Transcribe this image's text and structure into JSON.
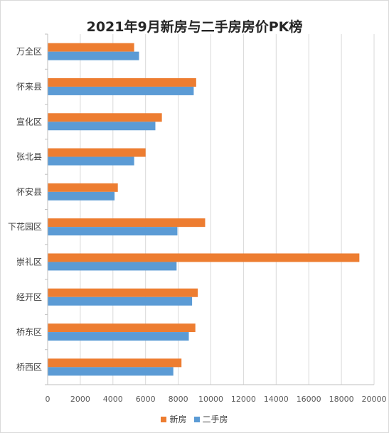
{
  "chart_data": {
    "type": "bar",
    "orientation": "horizontal",
    "title": "2021年9月新房与二手房房价PK榜",
    "categories": [
      "万全区",
      "怀来县",
      "宣化区",
      "张北县",
      "怀安县",
      "下花园区",
      "崇礼区",
      "经开区",
      "桥东区",
      "桥西区"
    ],
    "series": [
      {
        "name": "新房",
        "color": "#ED7D31",
        "values": [
          5300,
          9100,
          7000,
          6000,
          4300,
          9650,
          19100,
          9200,
          9050,
          8200
        ]
      },
      {
        "name": "二手房",
        "color": "#5B9BD5",
        "values": [
          5600,
          8950,
          6600,
          5300,
          4100,
          7950,
          7900,
          8850,
          8650,
          7700
        ]
      }
    ],
    "xlim": [
      0,
      20000
    ],
    "xticks": [
      0,
      2000,
      4000,
      6000,
      8000,
      10000,
      12000,
      14000,
      16000,
      18000,
      20000
    ],
    "grid": true,
    "legend_position": "bottom"
  }
}
